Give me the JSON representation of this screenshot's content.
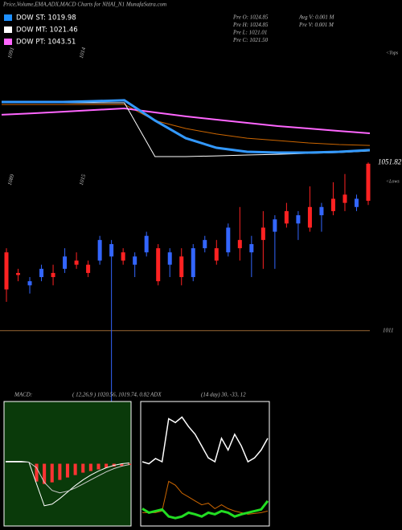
{
  "header": {
    "title": "Price,Volume,EMA,ADX,MACD Charts for NHAI_N1 MunafaSutra.com",
    "legend": [
      {
        "text": "DOW ST: 1019.98",
        "color": "#1e90ff"
      },
      {
        "text": "DOW MT: 1021.46",
        "color": "#ffffff"
      },
      {
        "text": "DOW PT: 1043.51",
        "color": "#ff66ff"
      }
    ],
    "info_left": [
      "Pre   O: 1024.85",
      "Pre   H: 1024.85",
      "Pre   L: 1021.01",
      "Pre   C: 1021.50"
    ],
    "info_right": [
      "Avg V: 0.001 M",
      "Pre  V: 0.001 M"
    ]
  },
  "chart_data": [
    {
      "type": "line",
      "x_labels": [
        "1091",
        "1014"
      ],
      "side_label": "<Tops",
      "x": [
        0,
        1,
        2,
        3,
        4,
        5,
        6,
        7,
        8,
        9,
        10,
        11,
        12
      ],
      "xlim": [
        0,
        12
      ],
      "ylim": [
        0,
        100
      ],
      "series": [
        {
          "color": "#cc6600",
          "width": 1,
          "values": [
            54.8,
            54.8,
            54.8,
            54.8,
            54.8,
            41.9,
            35.5,
            31.0,
            27.7,
            25.8,
            23.9,
            22.6,
            21.9
          ]
        },
        {
          "color": "#ff66ff",
          "width": 2,
          "values": [
            46.5,
            47.7,
            49.0,
            50.3,
            51.6,
            48.4,
            45.2,
            42.6,
            40.0,
            37.4,
            35.5,
            33.5,
            31.6
          ]
        },
        {
          "color": "#ffffff",
          "width": 1,
          "values": [
            56.1,
            56.1,
            56.1,
            56.1,
            56.1,
            12.9,
            12.9,
            13.5,
            14.2,
            14.8,
            15.5,
            16.1,
            17.4
          ]
        },
        {
          "color": "#3399ff",
          "width": 3,
          "values": [
            56.8,
            56.8,
            56.8,
            57.4,
            58.1,
            41.9,
            27.7,
            20.0,
            16.8,
            16.1,
            16.1,
            16.8,
            18.1
          ]
        }
      ]
    },
    {
      "type": "candlestick",
      "x_labels": [
        "1089",
        "1015"
      ],
      "side_label": "<Lows",
      "up_color": "#3366ff",
      "down_color": "#ff2222",
      "ylim": [
        1009.4,
        1054.2
      ],
      "xlim": [
        0,
        31
      ],
      "ref_line": 1011,
      "ref_color": "#996633",
      "last_price": 1051.82,
      "open": [
        1030,
        1025,
        1022,
        1024,
        1025,
        1026,
        1028,
        1027,
        1028,
        1029,
        1030,
        1027,
        1030,
        1031,
        1027,
        1029,
        1024,
        1031,
        1031,
        1030,
        1033,
        1030,
        1036,
        1035,
        1040,
        1037,
        1041,
        1039,
        1043,
        1044,
        1041,
        1051.5
      ],
      "high": [
        1031,
        1026,
        1024,
        1027,
        1027,
        1031,
        1030,
        1028,
        1034,
        1033,
        1031,
        1030,
        1035,
        1032,
        1031,
        1031,
        1032,
        1034,
        1033,
        1037,
        1041,
        1034,
        1040,
        1039,
        1042,
        1040,
        1046,
        1042,
        1047,
        1049,
        1044,
        1051.82
      ],
      "low": [
        1018,
        1023,
        1020,
        1023,
        1022,
        1025,
        1026,
        1024,
        1027,
        966.7,
        1027,
        1024,
        1029,
        1022,
        1024,
        1022,
        1023,
        1030,
        1027,
        1029,
        1028,
        1024,
        1026,
        1026,
        1036,
        1033,
        1035,
        1035,
        1039,
        1040,
        1040,
        1041.5
      ],
      "close": [
        1021,
        1024.5,
        1023,
        1026,
        1024,
        1029,
        1027,
        1025,
        1033,
        1032,
        1028,
        1029,
        1034,
        1023,
        1030,
        1024,
        1031,
        1033,
        1028,
        1036,
        1031,
        1032,
        1033,
        1038,
        1037,
        1039,
        1036,
        1041,
        1040,
        1042,
        1043,
        1042.5
      ]
    },
    {
      "type": "line",
      "title": "MACD:",
      "subtitle": "( 12,26,9 ) 1020.56, 1019.74, 0.82",
      "background": "#0a3a0a",
      "x": [
        0,
        1,
        2,
        3,
        4,
        5,
        6,
        7,
        8,
        9,
        10,
        11,
        12,
        13,
        14,
        15,
        16
      ],
      "xlim": [
        0,
        16
      ],
      "ylim": [
        -7.5,
        7.5
      ],
      "series": [
        {
          "type": "bar",
          "color": "#ff3333",
          "values": [
            0,
            0,
            0,
            0,
            -2.2,
            -2.5,
            -2.3,
            -2.0,
            -1.7,
            -1.4,
            -1.1,
            -0.9,
            -0.7,
            -0.5,
            -0.35,
            -0.25,
            -0.15
          ]
        },
        {
          "color": "#ffffff",
          "width": 1,
          "values": [
            0.3,
            0.3,
            0.3,
            0.2,
            -2.5,
            -5.2,
            -5.0,
            -4.3,
            -3.5,
            -2.7,
            -2,
            -1.4,
            -0.9,
            -0.5,
            -0.2,
            0,
            0.1
          ]
        },
        {
          "color": "#cccccc",
          "width": 1,
          "values": [
            0.2,
            0.2,
            0.2,
            0.2,
            -0.5,
            -2.3,
            -3.3,
            -3.6,
            -3.4,
            -3.0,
            -2.5,
            -2,
            -1.5,
            -1,
            -0.6,
            -0.3,
            -0.1
          ]
        }
      ]
    },
    {
      "type": "line",
      "title": "ADX",
      "subtitle": "(14 day) 30, -33, 12",
      "background": "#000000",
      "x": [
        0,
        1,
        2,
        3,
        4,
        5,
        6,
        7,
        8,
        9,
        10,
        11,
        12,
        13,
        14,
        15,
        16,
        17,
        18,
        19
      ],
      "xlim": [
        0,
        19
      ],
      "ylim": [
        0,
        60
      ],
      "series": [
        {
          "color": "#ffffff",
          "width": 1.5,
          "values": [
            31,
            30,
            32.6,
            31,
            52.3,
            50.4,
            53.1,
            48.4,
            44.6,
            38.8,
            32.9,
            31,
            42.6,
            36.8,
            44.6,
            38.8,
            31,
            32.9,
            36.8,
            42.6
          ]
        },
        {
          "color": "#cc6600",
          "width": 1,
          "values": [
            5.8,
            5.8,
            5.8,
            6.6,
            21.3,
            19.4,
            15.5,
            13.6,
            11.6,
            9.7,
            10.5,
            7.8,
            9.7,
            7.8,
            6.6,
            5.8,
            5,
            5.4,
            5.8,
            6.6
          ]
        },
        {
          "color": "#22dd22",
          "width": 3,
          "values": [
            7.8,
            5.8,
            6.6,
            7.4,
            3.9,
            3.1,
            3.9,
            5.8,
            5,
            3.9,
            5.8,
            5,
            6.6,
            5.8,
            3.9,
            5,
            5.8,
            6.6,
            7.4,
            11.6
          ]
        }
      ]
    }
  ]
}
